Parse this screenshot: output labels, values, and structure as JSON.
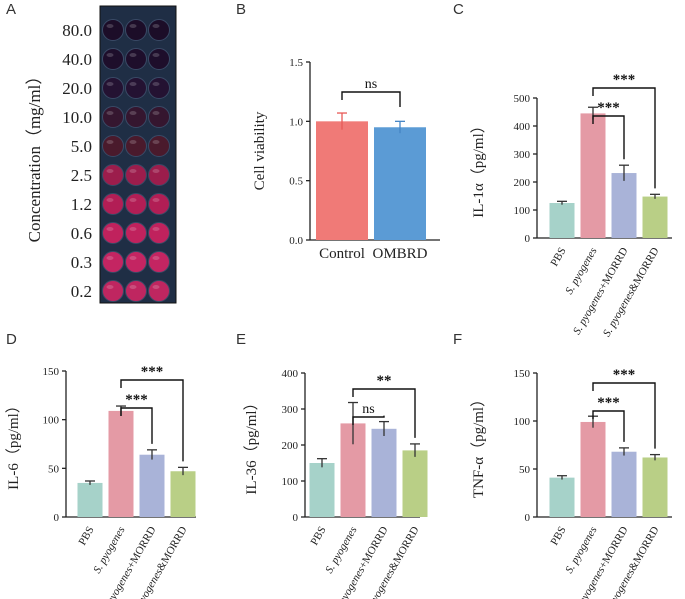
{
  "panels": {
    "A": {
      "letter": "A",
      "ylabel": "Concentration（mg/ml）",
      "concentrations": [
        "80.0",
        "40.0",
        "20.0",
        "10.0",
        "5.0",
        "2.5",
        "1.2",
        "0.6",
        "0.3",
        "0.2"
      ],
      "well_colors": [
        "#1c0d28",
        "#1e0e2b",
        "#241232",
        "#35162f",
        "#4a1a2c",
        "#9c1d4c",
        "#b21e55",
        "#c0225d",
        "#c42562",
        "#bf2660"
      ]
    },
    "B": {
      "letter": "B"
    },
    "C": {
      "letter": "C"
    },
    "D": {
      "letter": "D"
    },
    "E": {
      "letter": "E"
    },
    "F": {
      "letter": "F"
    }
  },
  "chart_data": [
    {
      "id": "B",
      "type": "bar",
      "ylabel": "Cell viability",
      "categories": [
        "Control",
        "OMBRD"
      ],
      "values": [
        1.0,
        0.95
      ],
      "errors": [
        0.07,
        0.05
      ],
      "ylim": [
        0,
        1.5
      ],
      "yticks": [
        "0.0",
        "0.5",
        "1.0",
        "1.5"
      ],
      "colors": [
        "#f07a77",
        "#5b9bd5"
      ],
      "error_colors": [
        "#e85a57",
        "#4585c5"
      ],
      "significance": [
        {
          "from": 0,
          "to": 1,
          "label": "ns"
        }
      ]
    },
    {
      "id": "C",
      "type": "bar",
      "ylabel": "IL-1α（pg/ml）",
      "categories": [
        "PBS",
        "S. pyogenes",
        "S. pyogenes+MORRD",
        "S. pyogenes&MORRD"
      ],
      "values": [
        125,
        445,
        232,
        148
      ],
      "errors": [
        6,
        22,
        28,
        8
      ],
      "ylim": [
        0,
        500
      ],
      "yticks": [
        "0",
        "100",
        "200",
        "300",
        "400",
        "500"
      ],
      "colors": [
        "#a6d2c9",
        "#e49aa5",
        "#a9b3d8",
        "#b9cf86"
      ],
      "dot_colors": [
        "#3aa894",
        "#c8304d",
        "#4a5aa8",
        "#6b8c2a"
      ],
      "points": [
        [
          122,
          128,
          125
        ],
        [
          430,
          458,
          448
        ],
        [
          215,
          258,
          228
        ],
        [
          142,
          152,
          150
        ]
      ],
      "significance": [
        {
          "from": 1,
          "to": 2,
          "label": "***"
        },
        {
          "from": 1,
          "to": 3,
          "label": "***"
        }
      ]
    },
    {
      "id": "D",
      "type": "bar",
      "ylabel": "IL-6（pg/ml）",
      "categories": [
        "PBS",
        "S. pyogenes",
        "S. pyogenes+MORRD",
        "S. pyogenes&MORRD"
      ],
      "values": [
        35,
        109,
        64,
        47
      ],
      "errors": [
        2,
        5,
        5,
        4
      ],
      "ylim": [
        0,
        150
      ],
      "yticks": [
        "0",
        "50",
        "100",
        "150"
      ],
      "colors": [
        "#a6d2c9",
        "#e49aa5",
        "#a9b3d8",
        "#b9cf86"
      ],
      "dot_colors": [
        "#3aa894",
        "#c8304d",
        "#4a5aa8",
        "#6b8c2a"
      ],
      "points": [
        [
          34,
          36,
          35
        ],
        [
          105,
          113,
          110
        ],
        [
          60,
          68,
          64
        ],
        [
          44,
          50,
          47
        ]
      ],
      "significance": [
        {
          "from": 1,
          "to": 2,
          "label": "***"
        },
        {
          "from": 1,
          "to": 3,
          "label": "***"
        }
      ]
    },
    {
      "id": "E",
      "type": "bar",
      "ylabel": "IL-36（pg/ml）",
      "categories": [
        "PBS",
        "S. pyogenes",
        "S. pyogenes+MORRD",
        "S. pyogenes&MORRD"
      ],
      "values": [
        150,
        260,
        245,
        185
      ],
      "errors": [
        12,
        58,
        20,
        18
      ],
      "ylim": [
        0,
        400
      ],
      "yticks": [
        "0",
        "100",
        "200",
        "300",
        "400"
      ],
      "colors": [
        "#a6d2c9",
        "#e49aa5",
        "#a9b3d8",
        "#b9cf86"
      ],
      "dot_colors": [
        "#3aa894",
        "#c8304d",
        "#4a5aa8",
        "#6b8c2a"
      ],
      "points": [
        [
          140,
          158,
          152
        ],
        [
          205,
          295,
          320
        ],
        [
          232,
          262,
          245
        ],
        [
          170,
          200,
          186
        ]
      ],
      "significance": [
        {
          "from": 1,
          "to": 2,
          "label": "ns"
        },
        {
          "from": 1,
          "to": 3,
          "label": "**"
        }
      ]
    },
    {
      "id": "F",
      "type": "bar",
      "ylabel": "TNF-α（pg/ml）",
      "categories": [
        "PBS",
        "S. pyogenes",
        "S. pyogenes+MORRD",
        "S. pyogenes&MORRD"
      ],
      "values": [
        41,
        99,
        68,
        62
      ],
      "errors": [
        2,
        6,
        4,
        3
      ],
      "ylim": [
        0,
        150
      ],
      "yticks": [
        "0",
        "50",
        "100",
        "150"
      ],
      "colors": [
        "#a6d2c9",
        "#e49aa5",
        "#a9b3d8",
        "#b9cf86"
      ],
      "dot_colors": [
        "#3aa894",
        "#c8304d",
        "#4a5aa8",
        "#6b8c2a"
      ],
      "points": [
        [
          40,
          42,
          41
        ],
        [
          94,
          104,
          99
        ],
        [
          65,
          71,
          68
        ],
        [
          60,
          65,
          62
        ]
      ],
      "significance": [
        {
          "from": 1,
          "to": 2,
          "label": "***"
        },
        {
          "from": 1,
          "to": 3,
          "label": "***"
        }
      ]
    }
  ]
}
